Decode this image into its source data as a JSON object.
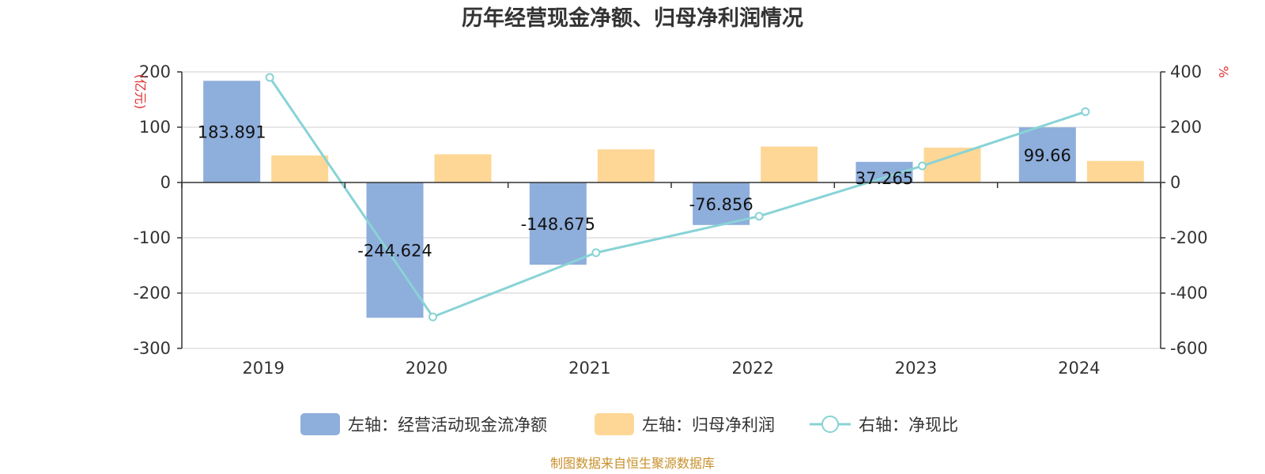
{
  "chart_data": {
    "type": "bar",
    "title": "历年经营现金净额、归母净利润情况",
    "categories": [
      "2019",
      "2020",
      "2021",
      "2022",
      "2023",
      "2024"
    ],
    "y_left": {
      "unit": "(亿元)",
      "min": -300,
      "max": 200,
      "ticks": [
        "200",
        "100",
        "0",
        "-100",
        "-200",
        "-300"
      ]
    },
    "y_right": {
      "unit": "%",
      "min": -600,
      "max": 400,
      "ticks": [
        "400",
        "200",
        "0",
        "-200",
        "-400",
        "-600"
      ]
    },
    "series": [
      {
        "name": "左轴：经营活动现金流净额",
        "kind": "bar",
        "axis": "left",
        "color": "#8eaedc",
        "values": [
          183.891,
          -244.624,
          -148.675,
          -76.856,
          37.265,
          99.66
        ],
        "labels": [
          "183.891",
          "-244.624",
          "-148.675",
          "-76.856",
          "37.265",
          "99.66"
        ]
      },
      {
        "name": "左轴：归母净利润",
        "kind": "bar",
        "axis": "right_of_left",
        "color": "#fed796",
        "values": [
          49,
          51,
          60,
          65,
          63,
          39
        ]
      },
      {
        "name": "右轴：净现比",
        "kind": "line",
        "axis": "right",
        "color": "#88d3d6",
        "values": [
          380,
          -486,
          -254,
          -122,
          60,
          256
        ]
      }
    ],
    "grid": true,
    "legend_position": "bottom"
  },
  "source": "制图数据来自恒生聚源数据库"
}
